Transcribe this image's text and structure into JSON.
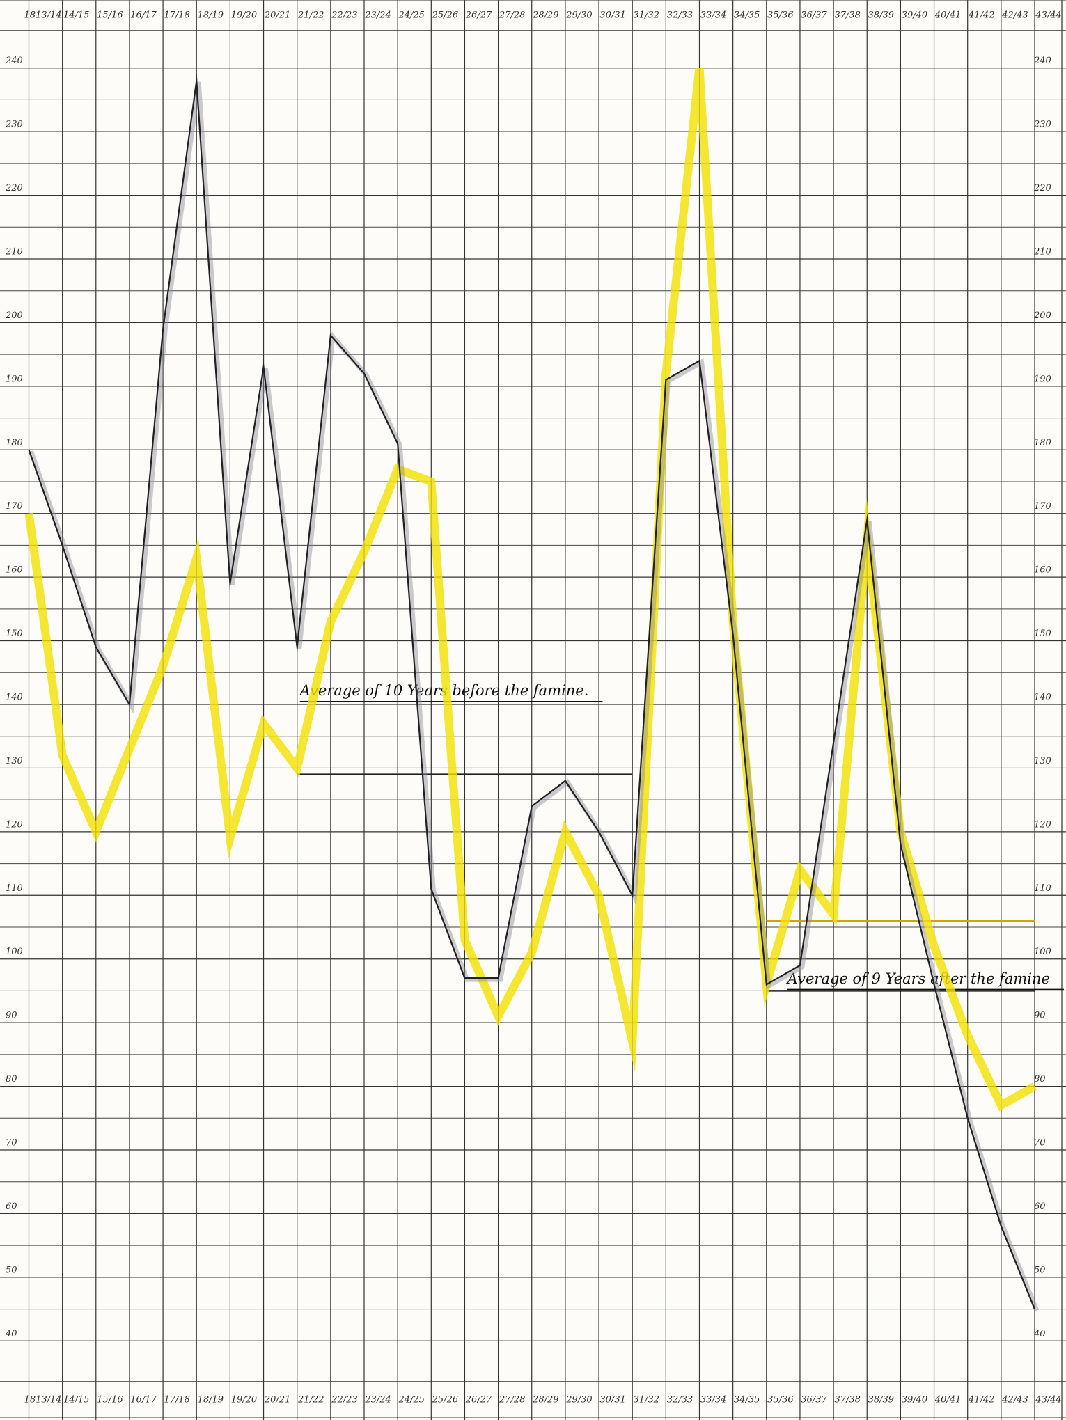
{
  "chart_data": {
    "type": "line",
    "categories": [
      "1813/14",
      "14/15",
      "15/16",
      "16/17",
      "17/18",
      "18/19",
      "19/20",
      "20/21",
      "21/22",
      "22/23",
      "23/24",
      "24/25",
      "25/26",
      "26/27",
      "27/28",
      "28/29",
      "29/30",
      "30/31",
      "31/32",
      "32/33",
      "33/34",
      "34/35",
      "35/36",
      "36/37",
      "37/38",
      "38/39",
      "39/40",
      "40/41",
      "41/42",
      "42/43",
      "43/44"
    ],
    "series": [
      {
        "color": "#f2e000",
        "values": [
          170,
          132,
          120,
          133,
          146,
          163,
          119,
          137,
          130,
          153,
          164,
          177,
          175,
          103,
          91,
          101,
          120,
          110,
          87,
          192,
          240,
          153,
          96,
          114,
          107,
          166,
          120,
          102,
          88,
          77,
          80
        ]
      },
      {
        "color": "#222222",
        "values": [
          180,
          165,
          149,
          140,
          199,
          238,
          159,
          193,
          149,
          198,
          192,
          181,
          111,
          97,
          97,
          124,
          128,
          120,
          110,
          191,
          194,
          151,
          96,
          99,
          134,
          169,
          118,
          96,
          75,
          58,
          45
        ]
      }
    ],
    "reference_lines": [
      {
        "label": "Average of 10 Years before the famine.",
        "value": 129,
        "start": "21/22",
        "end": "31/32",
        "color": "#222222"
      },
      {
        "label": "Average of 9 Years after the famine",
        "value": 95,
        "start": "35/36",
        "end": "43/44",
        "color": "#222222"
      },
      {
        "value": 106,
        "start": "35/36",
        "end": "43/44",
        "color": "#c9a800"
      }
    ],
    "ylim": [
      35,
      245
    ],
    "yticks": [
      40,
      50,
      60,
      70,
      80,
      90,
      100,
      110,
      120,
      130,
      140,
      150,
      160,
      170,
      180,
      190,
      200,
      210,
      220,
      230,
      240
    ],
    "grid": true
  }
}
